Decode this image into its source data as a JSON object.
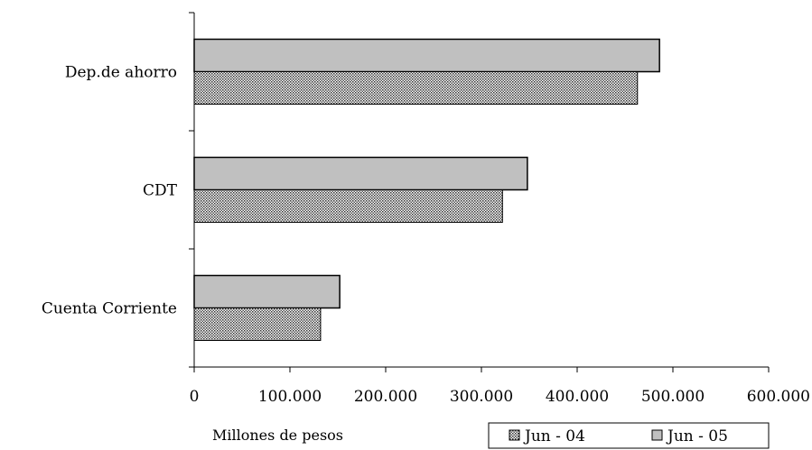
{
  "chart_data": {
    "type": "bar",
    "orientation": "horizontal",
    "categories": [
      "Dep.de ahorro",
      "CDT",
      "Cuenta Corriente"
    ],
    "series": [
      {
        "name": "Jun - 04",
        "values": [
          463000,
          322000,
          132000
        ],
        "fill": "pattern-dots"
      },
      {
        "name": "Jun - 05",
        "values": [
          486000,
          348000,
          152000
        ],
        "fill": "#c0c0c0"
      }
    ],
    "xlim": [
      0,
      600000
    ],
    "xticks": [
      0,
      100000,
      200000,
      300000,
      400000,
      500000,
      600000
    ],
    "xtick_labels": [
      "0",
      "100.000",
      "200.000",
      "300.000",
      "400.000",
      "500.000",
      "600.000"
    ],
    "xlabel": "Millones de pesos",
    "ylabel": "",
    "title": "",
    "grid": false,
    "legend": {
      "position": "bottom-right",
      "entries": [
        "Jun - 04",
        "Jun - 05"
      ]
    }
  }
}
